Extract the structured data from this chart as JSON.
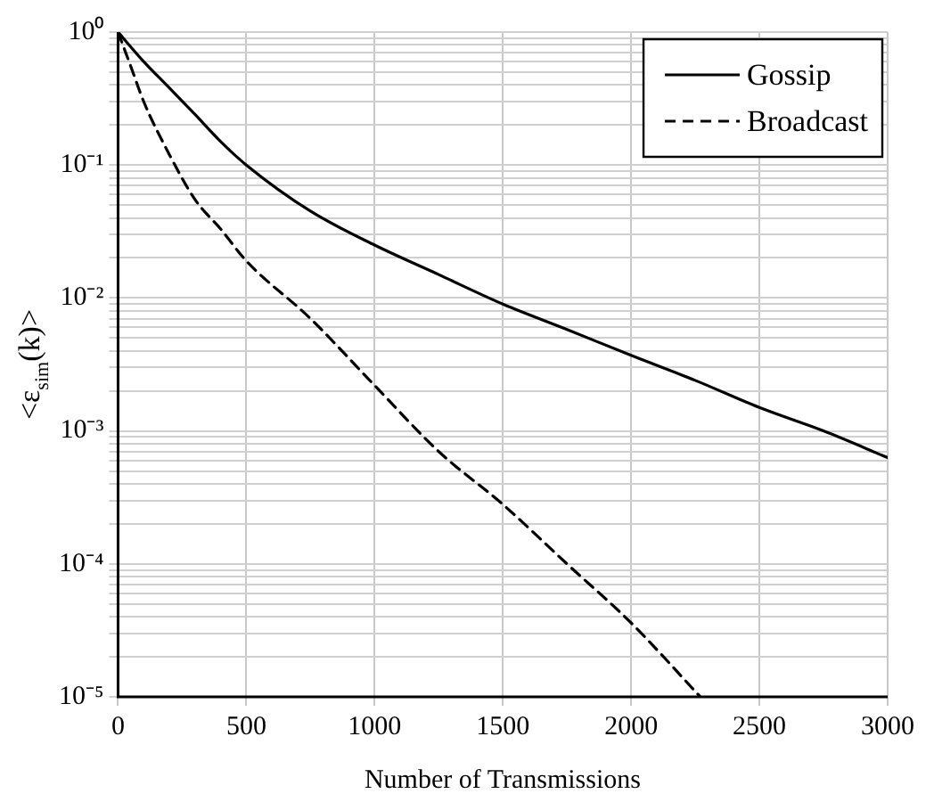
{
  "chart_data": {
    "type": "line",
    "xlabel": "Number of Transmissions",
    "ylabel": "<ε$_{sim}$(k)>",
    "log": "y",
    "grid": true,
    "legend": "top right",
    "marker": "none",
    "xlim": [
      0,
      3000
    ],
    "xticks": [
      0,
      500,
      1000,
      1500,
      2000,
      2500,
      3000
    ],
    "ylim": [
      1e-05,
      1
    ],
    "yticks": [
      {
        "value": 1e-05,
        "label": "10⁻⁵"
      },
      {
        "value": 2e-05,
        "label": null
      },
      {
        "value": 3e-05,
        "label": null
      },
      {
        "value": 4e-05,
        "label": null
      },
      {
        "value": 5e-05,
        "label": null
      },
      {
        "value": 6e-05,
        "label": null
      },
      {
        "value": 7e-05,
        "label": null
      },
      {
        "value": 8e-05,
        "label": null
      },
      {
        "value": 9e-05,
        "label": null
      },
      {
        "value": 0.0001,
        "label": "10⁻⁴"
      },
      {
        "value": 0.0002,
        "label": null
      },
      {
        "value": 0.0003,
        "label": null
      },
      {
        "value": 0.0004,
        "label": null
      },
      {
        "value": 0.0005,
        "label": null
      },
      {
        "value": 0.0006,
        "label": null
      },
      {
        "value": 0.0007,
        "label": null
      },
      {
        "value": 0.0008,
        "label": null
      },
      {
        "value": 0.0009,
        "label": null
      },
      {
        "value": 0.001,
        "label": "10⁻³"
      },
      {
        "value": 0.002,
        "label": null
      },
      {
        "value": 0.003,
        "label": null
      },
      {
        "value": 0.004,
        "label": null
      },
      {
        "value": 0.005,
        "label": null
      },
      {
        "value": 0.006,
        "label": null
      },
      {
        "value": 0.007,
        "label": null
      },
      {
        "value": 0.008,
        "label": null
      },
      {
        "value": 0.009,
        "label": null
      },
      {
        "value": 0.01,
        "label": "10⁻²"
      },
      {
        "value": 0.02,
        "label": null
      },
      {
        "value": 0.03,
        "label": null
      },
      {
        "value": 0.04,
        "label": null
      },
      {
        "value": 0.05,
        "label": null
      },
      {
        "value": 0.06,
        "label": null
      },
      {
        "value": 0.07,
        "label": null
      },
      {
        "value": 0.08,
        "label": null
      },
      {
        "value": 0.09,
        "label": null
      },
      {
        "value": 0.1,
        "label": "10⁻¹"
      },
      {
        "value": 0.2,
        "label": null
      },
      {
        "value": 0.3,
        "label": null
      },
      {
        "value": 0.4,
        "label": null
      },
      {
        "value": 0.5,
        "label": null
      },
      {
        "value": 0.6,
        "label": null
      },
      {
        "value": 0.7,
        "label": null
      },
      {
        "value": 0.8,
        "label": null
      },
      {
        "value": 0.9,
        "label": null
      },
      {
        "value": 1,
        "label": "10⁰"
      }
    ],
    "series": [
      {
        "name": "Gossip",
        "color": "#000000",
        "line_style": "solid",
        "x": [
          0,
          100,
          200,
          300,
          400,
          500,
          750,
          1000,
          1250,
          1500,
          1750,
          2000,
          2250,
          2500,
          2750,
          3000
        ],
        "values": [
          1,
          0.6,
          0.38,
          0.24,
          0.15,
          0.1,
          0.045,
          0.025,
          0.015,
          0.009,
          0.0058,
          0.0037,
          0.0024,
          0.0015,
          0.001,
          0.00063
        ]
      },
      {
        "name": "Broadcast",
        "color": "#000000",
        "line_style": "dashed",
        "x": [
          0,
          50,
          100,
          200,
          300,
          400,
          500,
          750,
          1000,
          1250,
          1500,
          1750,
          2000,
          2270
        ],
        "values": [
          1,
          0.55,
          0.3,
          0.12,
          0.055,
          0.033,
          0.019,
          0.007,
          0.0022,
          0.0007,
          0.00028,
          0.0001,
          3.6e-05,
          1e-05
        ]
      }
    ]
  }
}
